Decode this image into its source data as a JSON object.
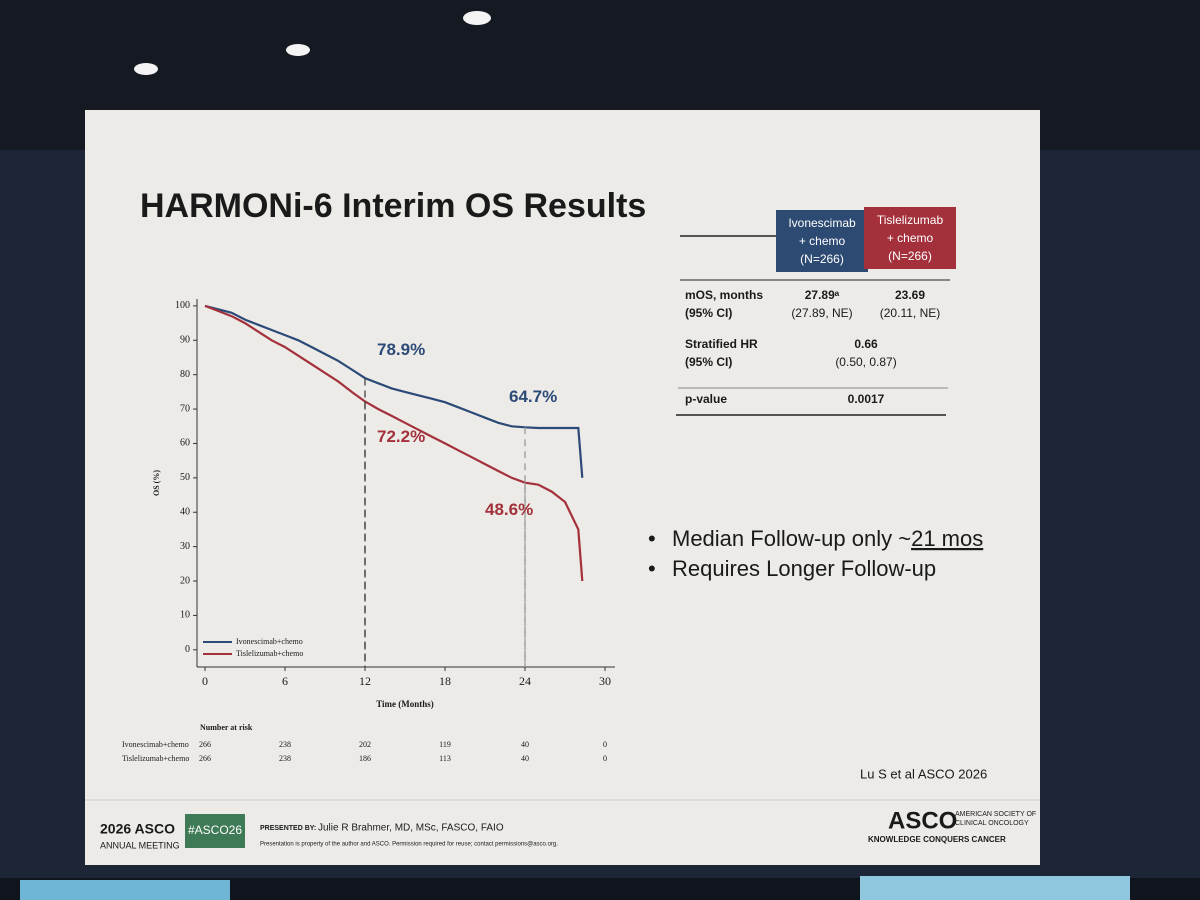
{
  "slide": {
    "title": "HARMONi-6 Interim OS Results",
    "bullets": [
      {
        "text": "Median Follow-up only ~",
        "underlined": "21 mos"
      },
      {
        "text": "Requires Longer Follow-up"
      }
    ],
    "citation": "Lu S et al  ASCO 2026",
    "footer": {
      "meeting_year": "2026 ASCO",
      "meeting_name": "ANNUAL MEETING",
      "hashtag": "#ASCO26",
      "presented_by_label": "PRESENTED BY:",
      "presenter": "Julie R Brahmer, MD, MSc, FASCO, FAIO",
      "disclaimer": "Presentation is property of the author and ASCO. Permission required for reuse; contact permissions@asco.org.",
      "logo": "ASCO",
      "society_line1": "AMERICAN SOCIETY OF",
      "society_line2": "CLINICAL ONCOLOGY",
      "tagline": "KNOWLEDGE CONQUERS CANCER"
    }
  },
  "table": {
    "columns": [
      {
        "lines": [
          "Ivonescimab",
          "+ chemo",
          "(N=266)"
        ],
        "color": "#2c4a72"
      },
      {
        "lines": [
          "Tislelizumab",
          "+ chemo",
          "(N=266)"
        ],
        "color": "#a3303a"
      }
    ],
    "rows": [
      {
        "label": [
          "mOS, months",
          "(95% CI)"
        ],
        "cells": [
          [
            "27.89ᵃ",
            "(27.89, NE)"
          ],
          [
            "23.69",
            "(20.11, NE)"
          ]
        ]
      },
      {
        "label": [
          "Stratified HR",
          "(95% CI)"
        ],
        "cells": [
          [
            "0.66",
            "(0.50, 0.87)"
          ]
        ]
      },
      {
        "label": [
          "p-value"
        ],
        "cells": [
          [
            "0.0017"
          ]
        ]
      }
    ]
  },
  "chart_data": {
    "type": "line",
    "xlabel": "Time (Months)",
    "ylabel": "OS (%)",
    "x": [
      0,
      1,
      2,
      3,
      4,
      5,
      6,
      7,
      8,
      9,
      10,
      11,
      12,
      13,
      14,
      15,
      16,
      17,
      18,
      19,
      20,
      21,
      22,
      23,
      24,
      25,
      26,
      27,
      28,
      28.3
    ],
    "series": [
      {
        "name": "Ivonescimab+chemo",
        "color": "#2c4a78",
        "values": [
          100,
          99,
          98,
          96,
          94.5,
          93,
          91.5,
          90,
          88,
          86,
          84,
          81.5,
          79,
          77.5,
          76,
          75,
          74,
          73,
          72,
          70.5,
          69,
          67.5,
          66,
          65,
          64.7,
          64.5,
          64.5,
          64.5,
          64.5,
          50
        ]
      },
      {
        "name": "Tislelizumab+chemo",
        "color": "#a3303a",
        "values": [
          100,
          98.5,
          97,
          95,
          92.5,
          90,
          88,
          85.5,
          83,
          80.5,
          78,
          75,
          72.2,
          70,
          68,
          66,
          64,
          62,
          60,
          58,
          56,
          54,
          52,
          50,
          48.6,
          48,
          46,
          43,
          35,
          20
        ]
      }
    ],
    "landmarks": [
      {
        "x": 12,
        "series": 0,
        "value": 78.9,
        "label": "78.9%"
      },
      {
        "x": 12,
        "series": 1,
        "value": 72.2,
        "label": "72.2%"
      },
      {
        "x": 24,
        "series": 0,
        "value": 64.7,
        "label": "64.7%"
      },
      {
        "x": 24,
        "series": 1,
        "value": 48.6,
        "label": "48.6%"
      }
    ],
    "xlim": [
      0,
      30
    ],
    "xticks": [
      0,
      6,
      12,
      18,
      24,
      30
    ],
    "ylim": [
      -5,
      102
    ],
    "yticks": [
      0,
      10,
      20,
      30,
      40,
      50,
      60,
      70,
      80,
      90,
      100
    ],
    "risk_table": {
      "title": "Number at risk",
      "rows": [
        {
          "name": "Ivonescimab+chemo",
          "values": [
            266,
            238,
            202,
            119,
            40,
            0
          ]
        },
        {
          "name": "Tislelizumab+chemo",
          "values": [
            266,
            238,
            186,
            113,
            40,
            0
          ]
        }
      ]
    }
  }
}
